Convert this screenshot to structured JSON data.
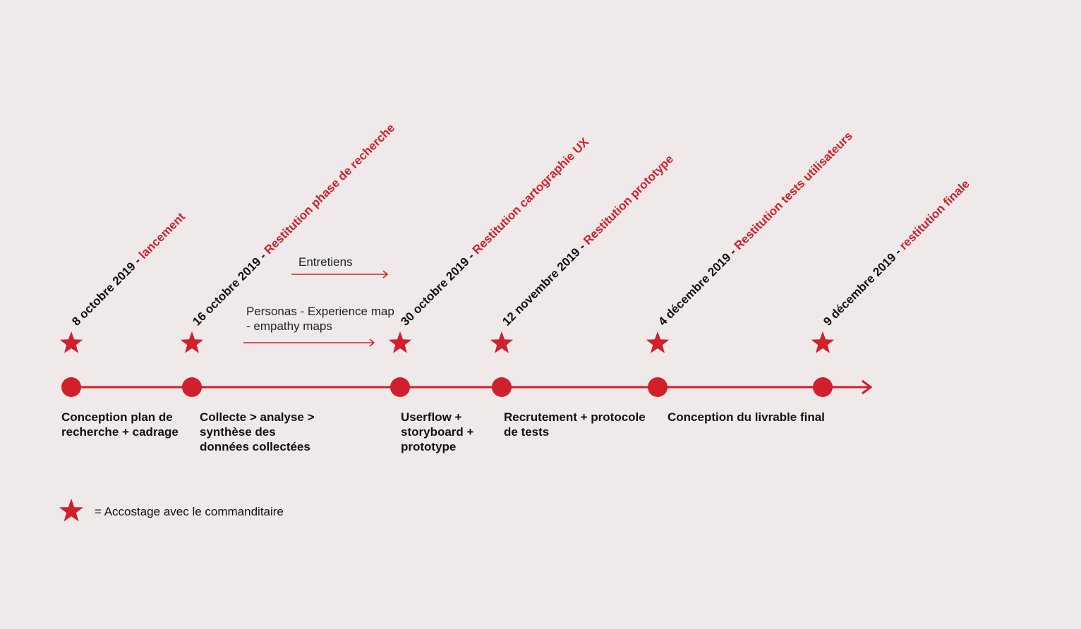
{
  "colors": {
    "accent": "#d11f2b",
    "text": "#111111",
    "background": "#efe9e9"
  },
  "milestones": [
    {
      "date": "8 octobre 2019 - ",
      "event": "lancement"
    },
    {
      "date": "16 octobre 2019 - ",
      "event": "Restitution phase de recherche"
    },
    {
      "date": "30 octobre 2019 - ",
      "event": "Restitution cartographie UX"
    },
    {
      "date": "12 novembre 2019 - ",
      "event": "Restitution prototype"
    },
    {
      "date": "4 décembre 2019 - ",
      "event": "Restitution tests utilisateurs"
    },
    {
      "date": "9  décembre 2019 - ",
      "event": "restitution finale"
    }
  ],
  "phases": [
    "Conception plan de\nrecherche + cadrage",
    "Collecte > analyse >\nsynthèse des\ndonnées collectées",
    "Userflow +\nstoryboard +\nprototype",
    "Recrutement + protocole\nde tests",
    "Conception du livrable final"
  ],
  "notes": {
    "interviews": "Entretiens",
    "personas": "Personas - Experience map\n- empathy maps"
  },
  "legend": {
    "icon": "star-icon",
    "text": "= Accostage avec le commanditaire"
  }
}
